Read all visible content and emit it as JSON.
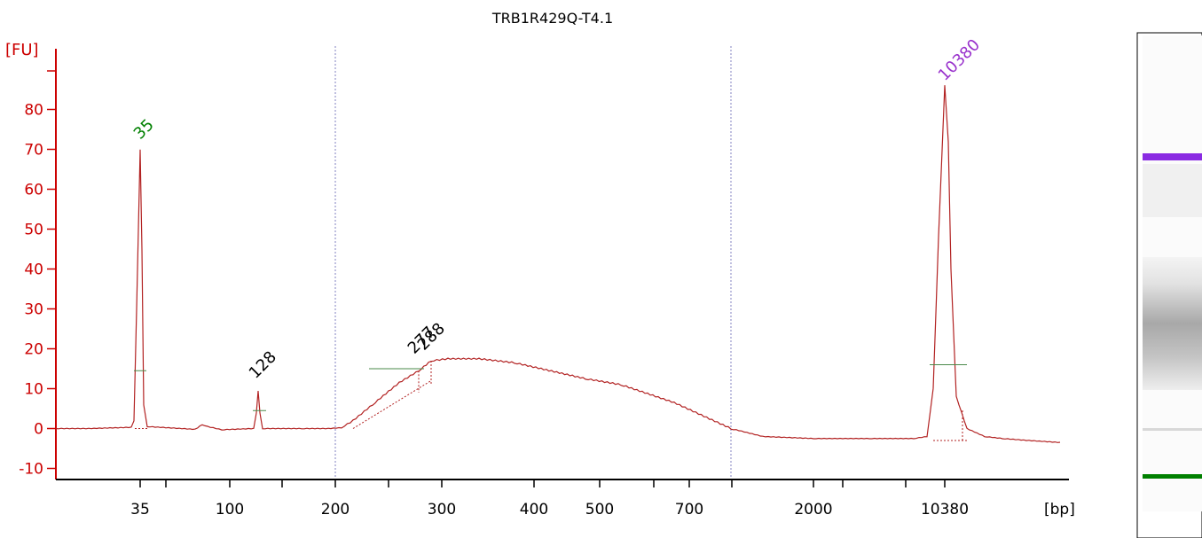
{
  "chart_data": {
    "type": "line",
    "title": "TRB1R429Q-T4.1",
    "ylabel": "[FU]",
    "xlabel": "[bp]",
    "ylim": [
      -12,
      95
    ],
    "y_ticks": [
      -10,
      0,
      10,
      20,
      30,
      40,
      50,
      60,
      70,
      80
    ],
    "x_tick_labels": [
      "35",
      "100",
      "200",
      "300",
      "400",
      "500",
      "700",
      "2000",
      "10380"
    ],
    "scale": "calibrated ladder (non-linear bp axis)",
    "grid": false,
    "series": [
      {
        "color": "#b22222",
        "x": [
          "35",
          "",
          "100",
          "128",
          "",
          "200",
          "",
          "277",
          "288",
          "300",
          "",
          "400",
          "500",
          "700",
          "",
          "2000",
          "",
          "10380",
          ""
        ],
        "values": [
          70,
          0.5,
          0,
          9.5,
          0,
          0,
          2,
          14.5,
          17,
          17.5,
          17.5,
          15,
          11,
          3.5,
          0,
          -2.5,
          -2.5,
          86,
          -3.5
        ]
      }
    ],
    "peak_labels": [
      {
        "text": "35",
        "color": "#008000"
      },
      {
        "text": "128",
        "color": "#000000"
      },
      {
        "text": "277",
        "color": "#000000"
      },
      {
        "text": "288",
        "color": "#000000"
      },
      {
        "text": "10380",
        "color": "#9932cc"
      }
    ]
  },
  "gel_lane": {
    "bands": [
      {
        "role": "upper-marker",
        "color": "#8a2be2"
      },
      {
        "role": "smear",
        "color": "#a8a8a8"
      },
      {
        "role": "lower-marker",
        "color": "#008000"
      }
    ]
  }
}
